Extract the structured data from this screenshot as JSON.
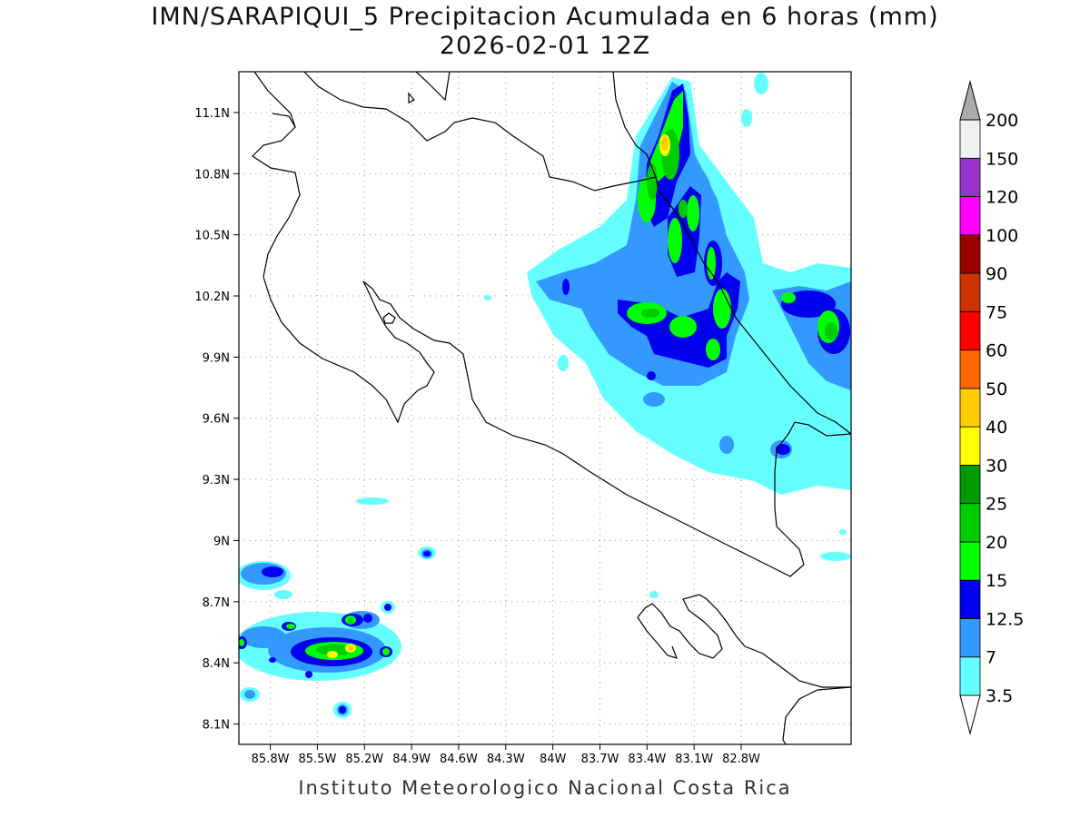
{
  "title": {
    "line1": "IMN/SARAPIQUI_5 Precipitacion Acumulada en 6 horas (mm)",
    "line2": "2026-02-01 12Z"
  },
  "credit": "Instituto Meteorologico Nacional Costa Rica",
  "map": {
    "lon_range": [
      -86.0,
      -82.1
    ],
    "lat_range": [
      8.0,
      11.3
    ],
    "lat_ticks": [
      "11.1N",
      "10.8N",
      "10.5N",
      "10.2N",
      "9.9N",
      "9.6N",
      "9.3N",
      "9N",
      "8.7N",
      "8.4N",
      "8.1N"
    ],
    "lon_ticks": [
      "85.8W",
      "85.5W",
      "85.2W",
      "84.9W",
      "84.6W",
      "84.3W",
      "84W",
      "83.7W",
      "83.4W",
      "83.1W",
      "82.8W"
    ],
    "gridlines": true
  },
  "colorbar": {
    "levels": [
      "3.5",
      "7",
      "12.5",
      "15",
      "20",
      "25",
      "30",
      "40",
      "50",
      "60",
      "75",
      "90",
      "100",
      "120",
      "150",
      "200"
    ],
    "colors": [
      "#66ffff",
      "#3399ff",
      "#0000ee",
      "#00ff00",
      "#00cc00",
      "#009900",
      "#ffff00",
      "#ffcc00",
      "#ff6600",
      "#ff0000",
      "#cc3300",
      "#990000",
      "#ff00ff",
      "#9933cc",
      "#f0f0f0",
      "#aaaaaa"
    ]
  }
}
